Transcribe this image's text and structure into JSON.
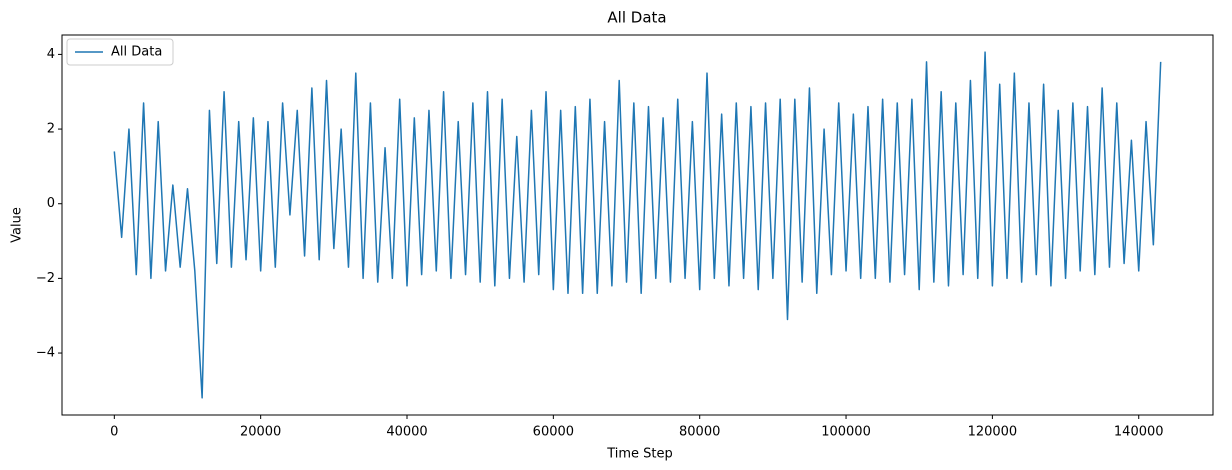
{
  "chart_data": {
    "type": "line",
    "title": "All Data",
    "x_label": "Time Step",
    "y_label": "Value",
    "x": [
      0,
      1000,
      2000,
      3000,
      4000,
      5000,
      6000,
      7000,
      8000,
      9000,
      10000,
      11000,
      12000,
      13000,
      14000,
      15000,
      16000,
      17000,
      18000,
      19000,
      20000,
      21000,
      22000,
      23000,
      24000,
      25000,
      26000,
      27000,
      28000,
      29000,
      30000,
      31000,
      32000,
      33000,
      34000,
      35000,
      36000,
      37000,
      38000,
      39000,
      40000,
      41000,
      42000,
      43000,
      44000,
      45000,
      46000,
      47000,
      48000,
      49000,
      50000,
      51000,
      52000,
      53000,
      54000,
      55000,
      56000,
      57000,
      58000,
      59000,
      60000,
      61000,
      62000,
      63000,
      64000,
      65000,
      66000,
      67000,
      68000,
      69000,
      70000,
      71000,
      72000,
      73000,
      74000,
      75000,
      76000,
      77000,
      78000,
      79000,
      80000,
      81000,
      82000,
      83000,
      84000,
      85000,
      86000,
      87000,
      88000,
      89000,
      90000,
      91000,
      92000,
      93000,
      94000,
      95000,
      96000,
      97000,
      98000,
      99000,
      100000,
      101000,
      102000,
      103000,
      104000,
      105000,
      106000,
      107000,
      108000,
      109000,
      110000,
      111000,
      112000,
      113000,
      114000,
      115000,
      116000,
      117000,
      118000,
      119000,
      120000,
      121000,
      122000,
      123000,
      124000,
      125000,
      126000,
      127000,
      128000,
      129000,
      130000,
      131000,
      132000,
      133000,
      134000,
      135000,
      136000,
      137000,
      138000,
      139000,
      140000,
      141000,
      142000,
      143000
    ],
    "series": [
      {
        "name": "All Data",
        "color": "#1f77b4",
        "values": [
          1.4,
          -0.9,
          2.0,
          -1.9,
          2.7,
          -2.0,
          2.2,
          -1.8,
          0.5,
          -1.7,
          0.4,
          -1.8,
          -5.2,
          2.5,
          -1.6,
          3.0,
          -1.7,
          2.2,
          -1.5,
          2.3,
          -1.8,
          2.2,
          -1.7,
          2.7,
          -0.3,
          2.5,
          -1.4,
          3.1,
          -1.5,
          3.3,
          -1.2,
          2.0,
          -1.7,
          3.5,
          -2.0,
          2.7,
          -2.1,
          1.5,
          -2.0,
          2.8,
          -2.2,
          2.3,
          -1.9,
          2.5,
          -1.8,
          3.0,
          -2.0,
          2.2,
          -1.9,
          2.7,
          -2.1,
          3.0,
          -2.2,
          2.8,
          -2.0,
          1.8,
          -2.1,
          2.5,
          -1.9,
          3.0,
          -2.3,
          2.5,
          -2.4,
          2.6,
          -2.4,
          2.8,
          -2.4,
          2.2,
          -2.2,
          3.3,
          -2.1,
          2.7,
          -2.4,
          2.6,
          -2.0,
          2.3,
          -2.1,
          2.8,
          -2.0,
          2.2,
          -2.3,
          3.5,
          -2.0,
          2.4,
          -2.2,
          2.7,
          -2.0,
          2.6,
          -2.3,
          2.7,
          -2.0,
          2.8,
          -3.1,
          2.8,
          -2.1,
          3.1,
          -2.4,
          2.0,
          -1.9,
          2.7,
          -1.8,
          2.4,
          -2.0,
          2.6,
          -2.0,
          2.8,
          -2.1,
          2.7,
          -1.9,
          2.8,
          -2.3,
          3.8,
          -2.1,
          3.0,
          -2.2,
          2.7,
          -1.9,
          3.3,
          -2.0,
          4.06,
          -2.2,
          3.2,
          -2.0,
          3.5,
          -2.1,
          2.7,
          -1.9,
          3.2,
          -2.2,
          2.5,
          -2.0,
          2.7,
          -1.8,
          2.6,
          -1.9,
          3.1,
          -1.7,
          2.7,
          -1.6,
          1.7,
          -1.8,
          2.2,
          -1.1,
          3.8
        ]
      }
    ],
    "xlim": [
      -7150,
      150150
    ],
    "ylim": [
      -5.66,
      4.52
    ],
    "xticks": [
      0,
      20000,
      40000,
      60000,
      80000,
      100000,
      120000,
      140000
    ],
    "yticks": [
      {
        "value": -4,
        "label": "−4"
      },
      {
        "value": -2,
        "label": "−2"
      },
      0,
      2,
      4
    ],
    "grid": false,
    "legend": "upper left"
  }
}
